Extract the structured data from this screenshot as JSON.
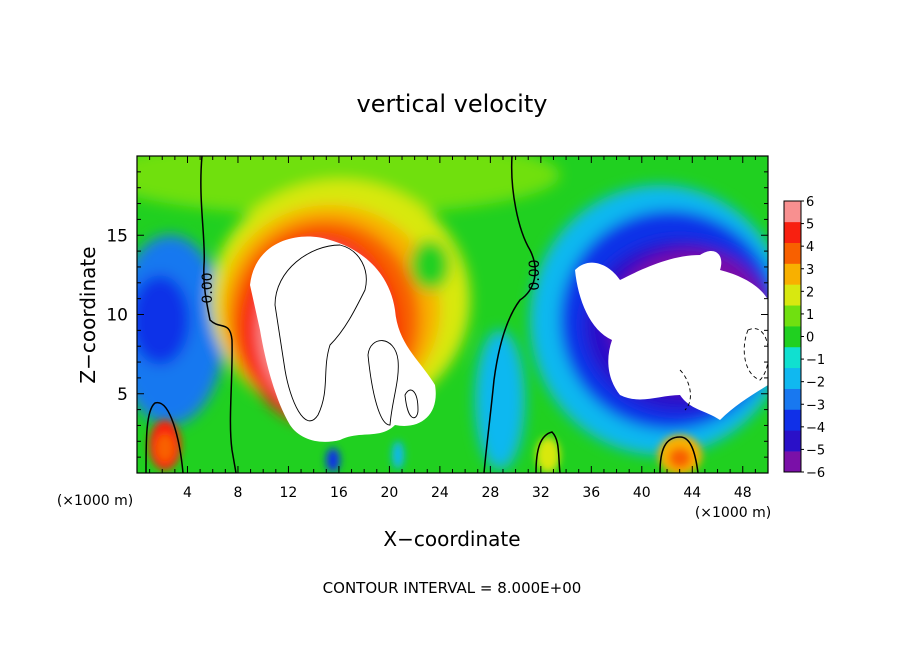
{
  "chart_data": {
    "type": "heatmap",
    "title": "vertical velocity",
    "xlabel": "X−coordinate",
    "ylabel": "Z−coordinate",
    "x_unit_left": "(×1000 m)",
    "x_unit_right": "(×1000 m)",
    "footer": "CONTOUR INTERVAL = 8.000E+00",
    "xlim": [
      0,
      50
    ],
    "ylim": [
      0,
      20
    ],
    "x_ticks": [
      4,
      8,
      12,
      16,
      20,
      24,
      28,
      32,
      36,
      40,
      44,
      48
    ],
    "x_tick_labels": [
      "4",
      "8",
      "12",
      "16",
      "20",
      "24",
      "28",
      "32",
      "36",
      "40",
      "44",
      "48"
    ],
    "y_ticks": [
      5,
      10,
      15
    ],
    "y_tick_labels": [
      "5",
      "10",
      "15"
    ],
    "colorbar": {
      "levels": [
        -6,
        -5,
        -4,
        -3,
        -2,
        -1,
        0,
        1,
        2,
        3,
        4,
        5,
        6
      ],
      "labels": [
        "−6",
        "−5",
        "−4",
        "−3",
        "−2",
        "−1",
        "0",
        "1",
        "2",
        "3",
        "4",
        "5",
        "6"
      ],
      "colors": [
        "#7a10a8",
        "#2a10c8",
        "#1030e8",
        "#1878f0",
        "#10b8f0",
        "#10e0d0",
        "#20d020",
        "#70e010",
        "#d8e810",
        "#f8b000",
        "#f86000",
        "#f82010",
        "#f89090"
      ]
    },
    "contour_labels": [
      {
        "text": "0.00",
        "x": 5.5,
        "z": 11.8
      },
      {
        "text": "0.00",
        "x": 31.5,
        "z": 12.6
      }
    ],
    "features": [
      {
        "kind": "updraft",
        "x_range": [
          8,
          27
        ],
        "z_range": [
          0,
          19
        ],
        "peak": "above 6"
      },
      {
        "kind": "downdraft",
        "x_range": [
          33,
          50
        ],
        "z_range": [
          2,
          17
        ],
        "peak": "below -6"
      },
      {
        "kind": "updraft",
        "x": 2.4,
        "z": 1.4,
        "value": 6
      },
      {
        "kind": "updraft",
        "x": 43,
        "z": 1.3,
        "value": 5
      }
    ]
  }
}
